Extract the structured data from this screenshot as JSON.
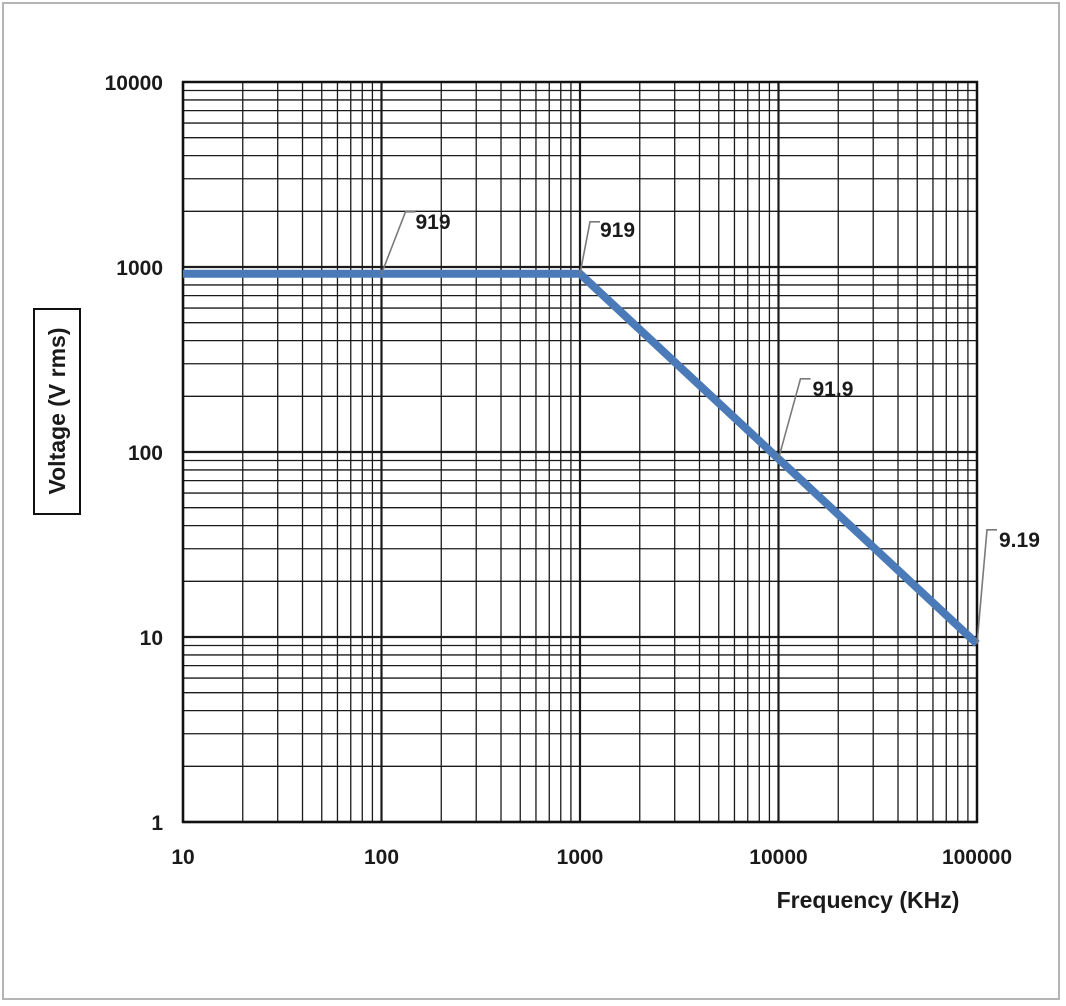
{
  "chart_data": {
    "type": "line",
    "xscale": "log",
    "yscale": "log",
    "xlabel": "Frequency (KHz)",
    "ylabel": "Voltage (V rms)",
    "xlim": [
      10,
      100000
    ],
    "ylim": [
      1,
      10000
    ],
    "grid": true,
    "series": [
      {
        "color": "#4a7ab8",
        "x": [
          10,
          1000,
          100000
        ],
        "y": [
          919,
          919,
          9.19
        ]
      }
    ],
    "x_ticks": [
      {
        "value": 10,
        "label": "10"
      },
      {
        "value": 100,
        "label": "100"
      },
      {
        "value": 1000,
        "label": "1000"
      },
      {
        "value": 10000,
        "label": "10000"
      },
      {
        "value": 100000,
        "label": "100000"
      }
    ],
    "y_ticks": [
      {
        "value": 1,
        "label": "1"
      },
      {
        "value": 10,
        "label": "10"
      },
      {
        "value": 100,
        "label": "100"
      },
      {
        "value": 1000,
        "label": "1000"
      },
      {
        "value": 10000,
        "label": "10000"
      }
    ],
    "annotations": [
      {
        "text": "919",
        "x": 100,
        "y": 919
      },
      {
        "text": "919",
        "x": 1000,
        "y": 919
      },
      {
        "text": "91.9",
        "x": 10000,
        "y": 91.9
      },
      {
        "text": "9.19",
        "x": 100000,
        "y": 9.19
      }
    ]
  }
}
